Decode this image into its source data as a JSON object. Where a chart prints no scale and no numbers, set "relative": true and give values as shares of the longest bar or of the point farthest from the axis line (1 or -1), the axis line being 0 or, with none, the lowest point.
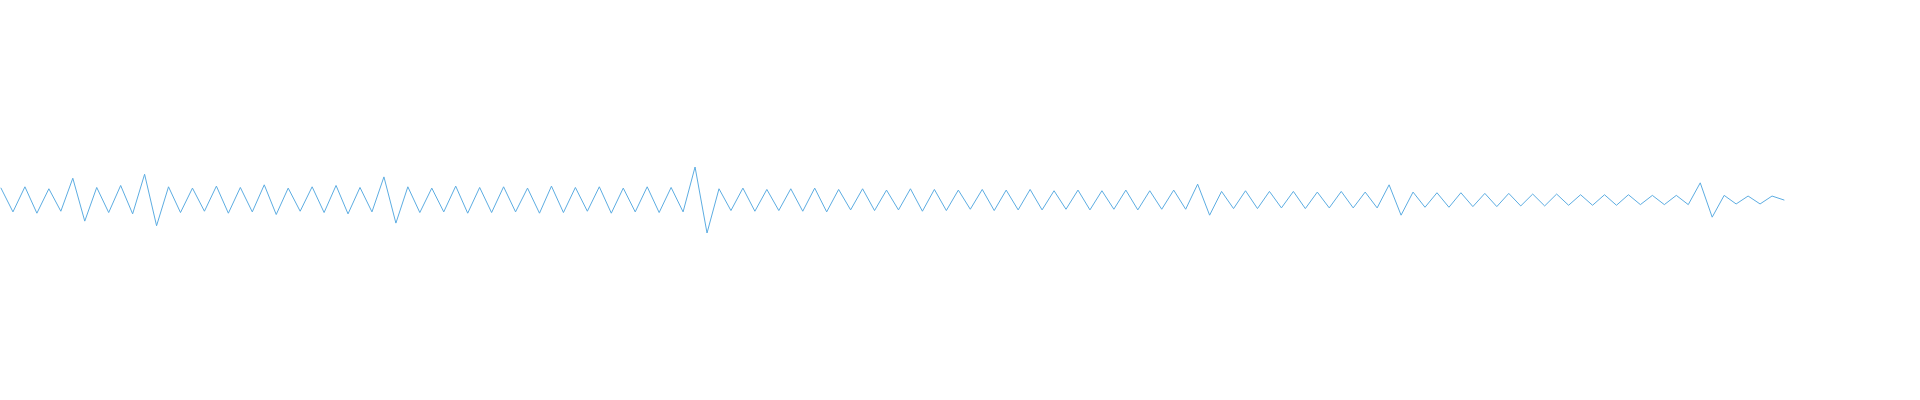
{
  "chart_data": {
    "type": "line",
    "relative": true,
    "categories": [
      null,
      null,
      null,
      null,
      null,
      null,
      null,
      null,
      null,
      null,
      null,
      null,
      null,
      null,
      null,
      null,
      null,
      null,
      null,
      null,
      null,
      null,
      null,
      null,
      null,
      null,
      null,
      null,
      null,
      null,
      null,
      null,
      null,
      null,
      null,
      null,
      null,
      null,
      null,
      null,
      null,
      null,
      null,
      null,
      null,
      null,
      null,
      null,
      null,
      null,
      null,
      null,
      null,
      null,
      null,
      null,
      null,
      null,
      null,
      null,
      null,
      null,
      null,
      null,
      null,
      null,
      null,
      null,
      null,
      null,
      null,
      null,
      null,
      null,
      null,
      null,
      null,
      null,
      null,
      null,
      null,
      null,
      null,
      null,
      null,
      null,
      null,
      null,
      null,
      null,
      null,
      null,
      null,
      null,
      null,
      null,
      null,
      null,
      null,
      null,
      null,
      null,
      null,
      null,
      null,
      null,
      null,
      null,
      null,
      null,
      null,
      null,
      null,
      null,
      null,
      null,
      null,
      null,
      null,
      null,
      null,
      null,
      null,
      null,
      null,
      null,
      null,
      null,
      null,
      null,
      null,
      null,
      null,
      null,
      null,
      null,
      null,
      null,
      null,
      null,
      null,
      null,
      null,
      null,
      null,
      null,
      null,
      null,
      null,
      null
    ],
    "series": [
      {
        "color": "#5dade2",
        "values": [
          0.68,
          0.32,
          0.7,
          0.3,
          0.67,
          0.33,
          0.83,
          0.18,
          0.69,
          0.31,
          0.72,
          0.29,
          0.89,
          0.11,
          0.7,
          0.31,
          0.68,
          0.33,
          0.71,
          0.3,
          0.69,
          0.32,
          0.73,
          0.28,
          0.68,
          0.33,
          0.7,
          0.31,
          0.72,
          0.29,
          0.69,
          0.32,
          0.85,
          0.15,
          0.7,
          0.31,
          0.68,
          0.32,
          0.71,
          0.3,
          0.69,
          0.31,
          0.7,
          0.32,
          0.68,
          0.3,
          0.71,
          0.31,
          0.69,
          0.33,
          0.7,
          0.3,
          0.68,
          0.32,
          0.7,
          0.31,
          0.69,
          0.32,
          1,
          0,
          0.67,
          0.34,
          0.68,
          0.33,
          0.66,
          0.34,
          0.67,
          0.33,
          0.68,
          0.32,
          0.66,
          0.35,
          0.67,
          0.34,
          0.65,
          0.35,
          0.67,
          0.33,
          0.66,
          0.34,
          0.65,
          0.36,
          0.66,
          0.34,
          0.65,
          0.35,
          0.66,
          0.35,
          0.64,
          0.36,
          0.65,
          0.35,
          0.64,
          0.36,
          0.65,
          0.35,
          0.64,
          0.36,
          0.65,
          0.36,
          0.74,
          0.27,
          0.63,
          0.37,
          0.64,
          0.37,
          0.63,
          0.38,
          0.63,
          0.37,
          0.62,
          0.38,
          0.63,
          0.38,
          0.62,
          0.38,
          0.73,
          0.27,
          0.62,
          0.39,
          0.61,
          0.39,
          0.61,
          0.4,
          0.6,
          0.4,
          0.6,
          0.41,
          0.59,
          0.41,
          0.59,
          0.42,
          0.58,
          0.42,
          0.58,
          0.42,
          0.58,
          0.43,
          0.57,
          0.43,
          0.57,
          0.43,
          0.76,
          0.24,
          0.57,
          0.44,
          0.56,
          0.44,
          0.56,
          0.5
        ]
      }
    ]
  }
}
